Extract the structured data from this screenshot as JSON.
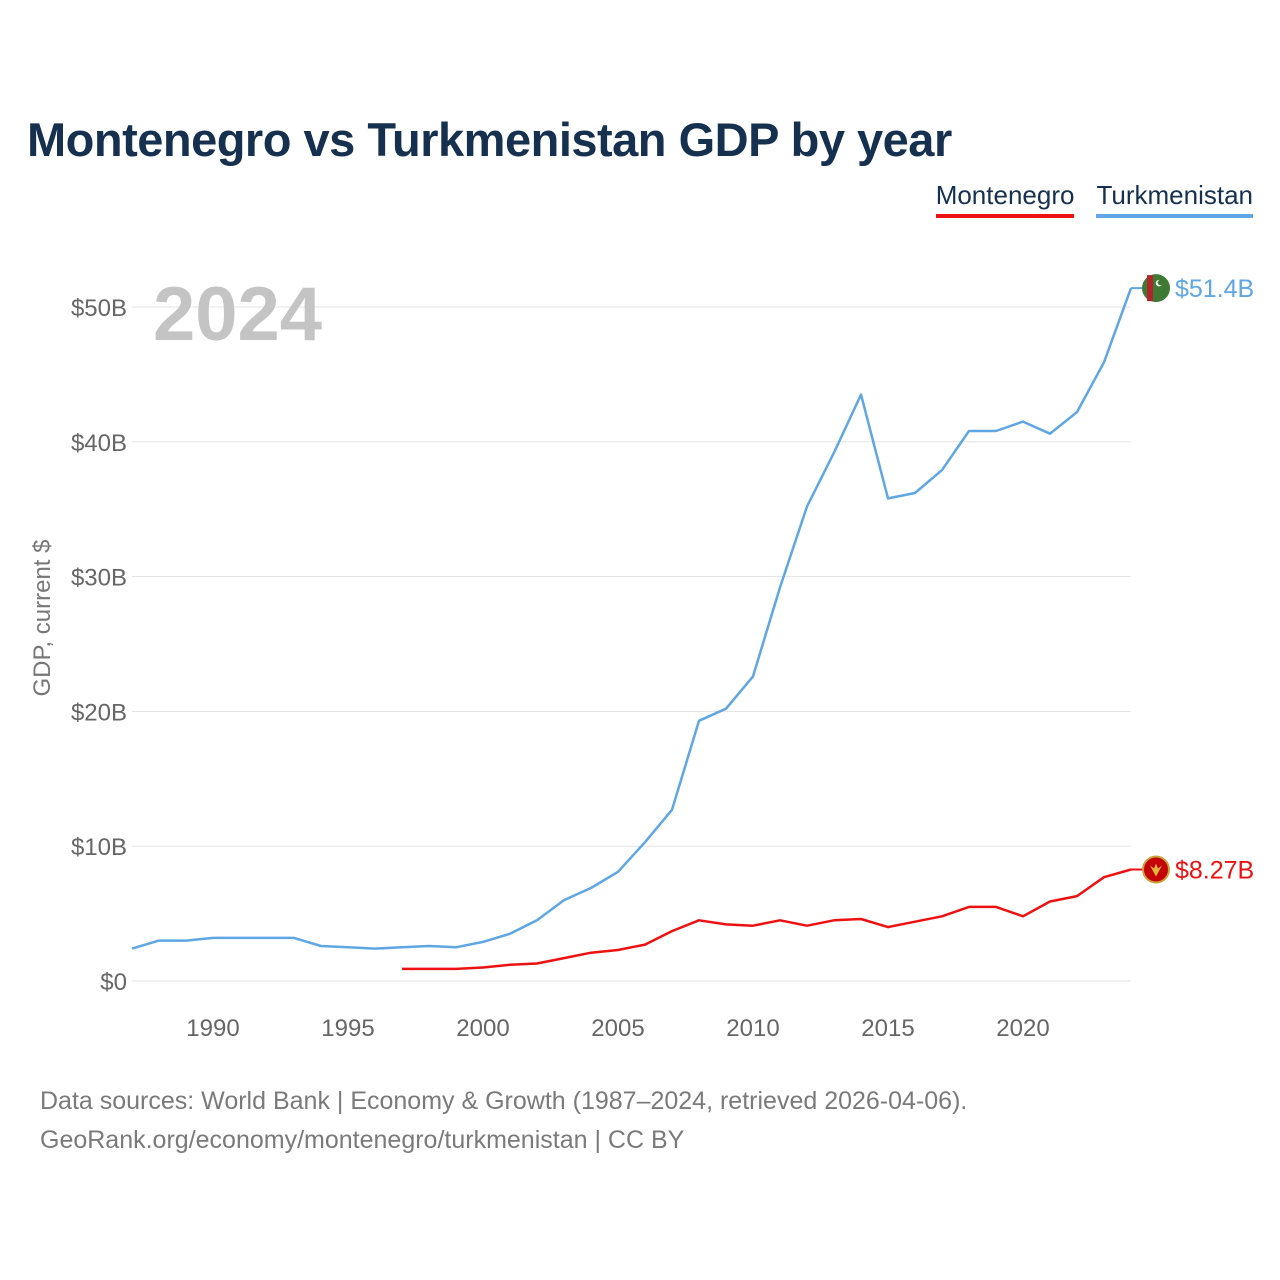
{
  "title": "Montenegro vs Turkmenistan GDP by year",
  "legend": [
    {
      "label": "Montenegro",
      "color": "#ee1111"
    },
    {
      "label": "Turkmenistan",
      "color": "#5ea6e4"
    }
  ],
  "footer": {
    "line1": "Data sources: World Bank | Economy & Growth (1987–2024, retrieved 2026-04-06).",
    "line2": "GeoRank.org/economy/montenegro/turkmenistan | CC BY"
  },
  "chart_data": {
    "type": "line",
    "title": "Montenegro vs Turkmenistan GDP by year",
    "xlabel": "",
    "ylabel": "GDP, current $",
    "xlim": [
      1987,
      2024
    ],
    "ylim": [
      0,
      50
    ],
    "y_unit": "billions USD",
    "x_ticks": [
      1990,
      1995,
      2000,
      2005,
      2010,
      2015,
      2020
    ],
    "y_ticks": [
      0,
      10,
      20,
      30,
      40,
      50
    ],
    "y_tick_labels": [
      "$0",
      "$10B",
      "$20B",
      "$30B",
      "$40B",
      "$50B"
    ],
    "grid": true,
    "legend_position": "top-right",
    "year_annotation": "2024",
    "series": [
      {
        "name": "Turkmenistan",
        "color": "#5ea6e4",
        "end_label": "$51.4B",
        "flag": "turkmenistan-flag",
        "x": [
          1987,
          1988,
          1989,
          1990,
          1991,
          1992,
          1993,
          1994,
          1995,
          1996,
          1997,
          1998,
          1999,
          2000,
          2001,
          2002,
          2003,
          2004,
          2005,
          2006,
          2007,
          2008,
          2009,
          2010,
          2011,
          2012,
          2013,
          2014,
          2015,
          2016,
          2017,
          2018,
          2019,
          2020,
          2021,
          2022,
          2023,
          2024
        ],
        "values": [
          2.4,
          3.0,
          3.0,
          3.2,
          3.2,
          3.2,
          3.2,
          2.6,
          2.5,
          2.4,
          2.5,
          2.6,
          2.5,
          2.9,
          3.5,
          4.5,
          6.0,
          6.9,
          8.1,
          10.3,
          12.7,
          19.3,
          20.2,
          22.6,
          29.2,
          35.2,
          39.2,
          43.5,
          35.8,
          36.2,
          37.9,
          40.8,
          40.8,
          41.5,
          40.6,
          42.2,
          45.9,
          51.4
        ]
      },
      {
        "name": "Montenegro",
        "color": "#ee1111",
        "end_label": "$8.27B",
        "flag": "montenegro-flag",
        "x": [
          1997,
          1998,
          1999,
          2000,
          2001,
          2002,
          2003,
          2004,
          2005,
          2006,
          2007,
          2008,
          2009,
          2010,
          2011,
          2012,
          2013,
          2014,
          2015,
          2016,
          2017,
          2018,
          2019,
          2020,
          2021,
          2022,
          2023,
          2024
        ],
        "values": [
          0.9,
          0.9,
          0.9,
          1.0,
          1.2,
          1.3,
          1.7,
          2.1,
          2.3,
          2.7,
          3.7,
          4.5,
          4.2,
          4.1,
          4.5,
          4.1,
          4.5,
          4.6,
          4.0,
          4.4,
          4.8,
          5.5,
          5.5,
          4.8,
          5.9,
          6.3,
          7.7,
          8.27
        ]
      }
    ]
  }
}
